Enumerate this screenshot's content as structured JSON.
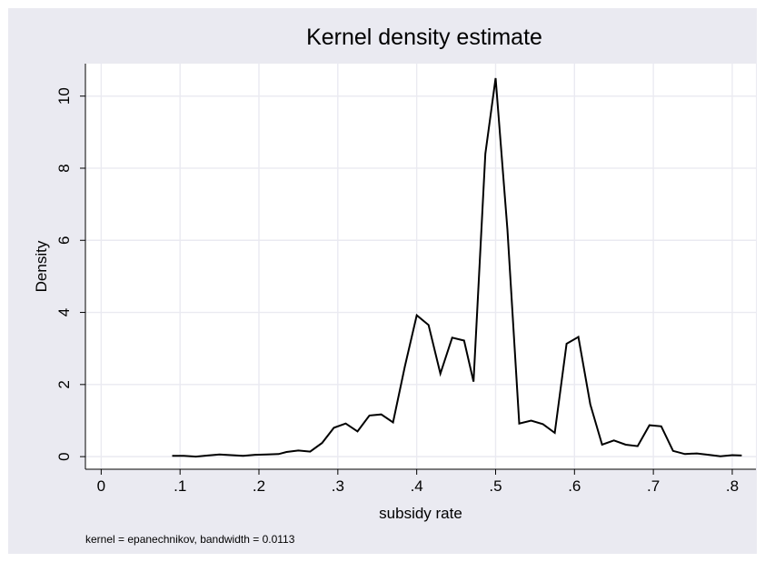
{
  "chart_data": {
    "type": "line",
    "title": "Kernel density estimate",
    "xlabel": "subsidy rate",
    "ylabel": "Density",
    "note": "kernel = epanechnikov, bandwidth = 0.0113",
    "xlim": [
      -0.02,
      0.83
    ],
    "ylim": [
      -0.35,
      10.9
    ],
    "x_ticks": [
      0,
      0.1,
      0.2,
      0.3,
      0.4,
      0.5,
      0.6,
      0.7,
      0.8
    ],
    "x_tick_labels": [
      "0",
      ".1",
      ".2",
      ".3",
      ".4",
      ".5",
      ".6",
      ".7",
      ".8"
    ],
    "y_ticks": [
      0,
      2,
      4,
      6,
      8,
      10
    ],
    "y_tick_labels": [
      "0",
      "2",
      "4",
      "6",
      "8",
      "10"
    ],
    "grid": true,
    "legend": "none",
    "colors": {
      "frame_background": "#eaeaf1",
      "plot_background": "#ffffff",
      "gridline": "#eaeaf1",
      "line": "#000000"
    },
    "series": [
      {
        "x": [
          0.09,
          0.105,
          0.12,
          0.135,
          0.15,
          0.165,
          0.18,
          0.195,
          0.21,
          0.225,
          0.235,
          0.25,
          0.265,
          0.28,
          0.295,
          0.31,
          0.325,
          0.34,
          0.355,
          0.37,
          0.385,
          0.4,
          0.415,
          0.43,
          0.445,
          0.46,
          0.472,
          0.487,
          0.5,
          0.515,
          0.53,
          0.545,
          0.56,
          0.575,
          0.59,
          0.605,
          0.62,
          0.635,
          0.65,
          0.665,
          0.68,
          0.695,
          0.71,
          0.725,
          0.74,
          0.755,
          0.77,
          0.785,
          0.8,
          0.812
        ],
        "y": [
          0.02,
          0.02,
          0.0,
          0.03,
          0.06,
          0.04,
          0.02,
          0.05,
          0.06,
          0.07,
          0.13,
          0.17,
          0.14,
          0.38,
          0.8,
          0.92,
          0.7,
          1.14,
          1.17,
          0.95,
          2.5,
          3.92,
          3.65,
          2.3,
          3.3,
          3.22,
          2.08,
          8.4,
          10.5,
          6.3,
          0.92,
          1.0,
          0.9,
          0.66,
          3.13,
          3.32,
          1.45,
          0.33,
          0.45,
          0.33,
          0.29,
          0.87,
          0.84,
          0.16,
          0.07,
          0.09,
          0.05,
          0.01,
          0.04,
          0.03
        ]
      }
    ]
  }
}
